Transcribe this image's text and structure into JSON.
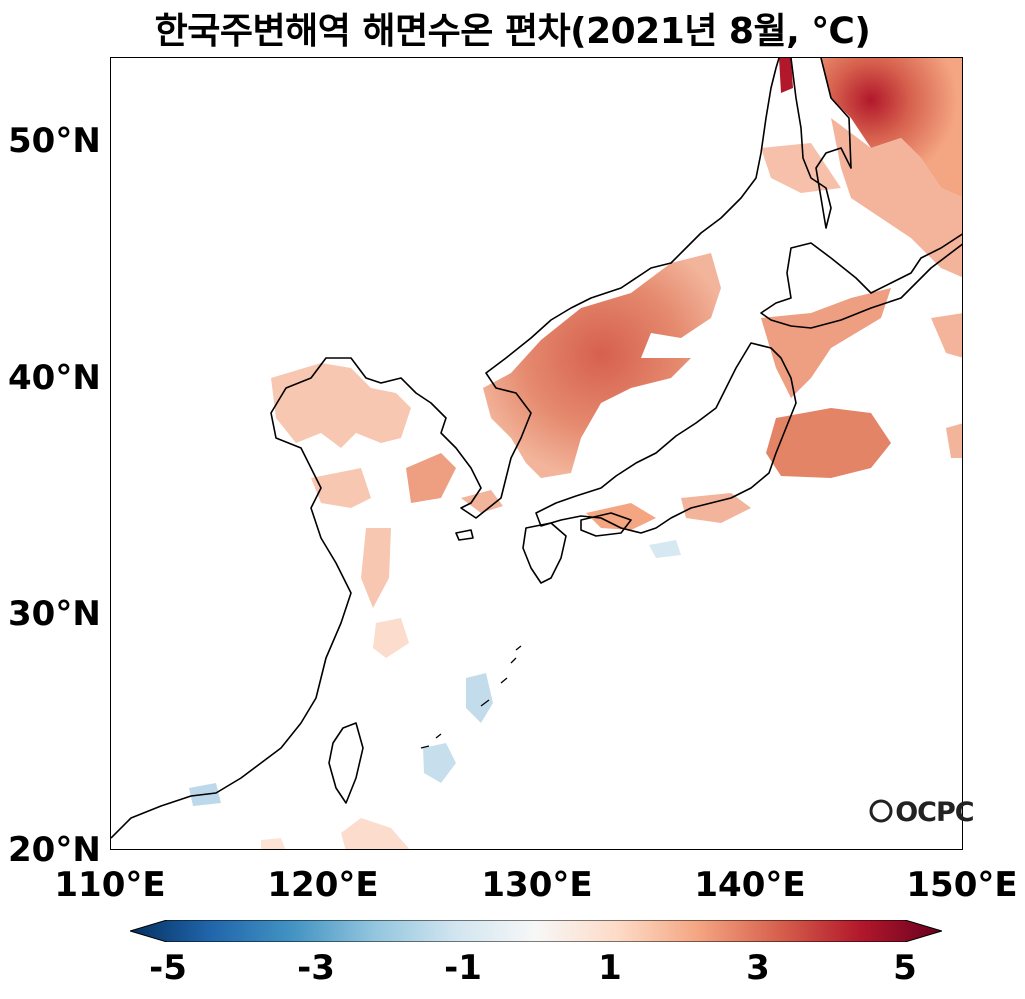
{
  "title": "한국주변해역 해면수온 편차(2021년 8월, ℃)",
  "logo": "OCPC",
  "axes": {
    "y_ticks": [
      "50°N",
      "40°N",
      "30°N",
      "20°N"
    ],
    "x_ticks": [
      "110°E",
      "120°E",
      "130°E",
      "140°E",
      "150°E"
    ]
  },
  "colorbar": {
    "labels": [
      "-5",
      "-3",
      "-1",
      "1",
      "3",
      "5"
    ],
    "colors": [
      "#053061",
      "#2166ac",
      "#4393c3",
      "#92c5de",
      "#d1e5f0",
      "#f7f7f7",
      "#fddbc7",
      "#f4a582",
      "#d6604d",
      "#b2182b",
      "#67001f"
    ],
    "range": [
      -5,
      5
    ]
  },
  "map": {
    "extent_lon": [
      110,
      150
    ],
    "extent_lat": [
      20,
      53.5
    ],
    "variable": "Sea surface temperature anomaly",
    "period": "2021-08"
  }
}
